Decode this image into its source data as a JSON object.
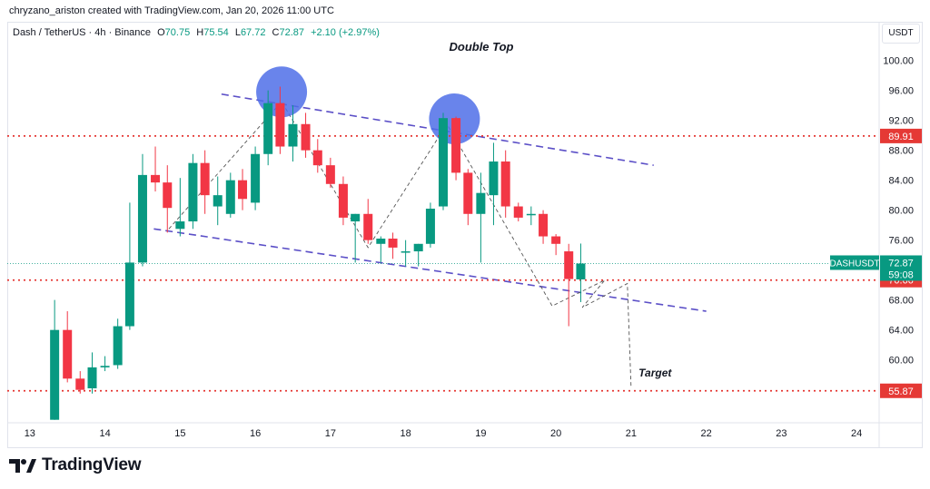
{
  "credit": "chryzano_ariston created with TradingView.com, Jan 20, 2026 11:00 UTC",
  "header": {
    "symbol": "Dash / TetherUS · 4h · Binance",
    "open_label": "O",
    "open": "70.75",
    "high_label": "H",
    "high": "75.54",
    "low_label": "L",
    "low": "67.72",
    "close_label": "C",
    "close": "72.87",
    "change": "+2.10 (+2.97%)"
  },
  "currency": "USDT",
  "brand": "TradingView",
  "colors": {
    "up": "#089981",
    "down": "#f23645",
    "level": "#e53935",
    "channel": "#5b4fc7",
    "circle": "#4f6fe8"
  },
  "chart_data": {
    "type": "candlestick",
    "title": "Double Top",
    "ylim": [
      51.6,
      102.5
    ],
    "xlim": [
      12.7,
      24.3
    ],
    "y_ticks": [
      "100.00",
      "96.00",
      "92.00",
      "88.00",
      "84.00",
      "80.00",
      "76.00",
      "72.00",
      "68.00",
      "64.00",
      "60.00",
      "56.00"
    ],
    "y_tick_values": [
      100,
      96,
      92,
      88,
      84,
      80,
      76,
      72,
      68,
      64,
      60,
      56
    ],
    "x_ticks": [
      "13",
      "14",
      "15",
      "16",
      "17",
      "18",
      "19",
      "20",
      "21",
      "22",
      "23",
      "24"
    ],
    "x_tick_values": [
      13,
      14,
      15,
      16,
      17,
      18,
      19,
      20,
      21,
      22,
      23,
      24
    ],
    "candles": [
      {
        "t": 13.33,
        "o": 52,
        "h": 68,
        "l": 52,
        "c": 64
      },
      {
        "t": 13.5,
        "o": 64,
        "h": 66.5,
        "l": 57,
        "c": 57.5
      },
      {
        "t": 13.67,
        "o": 57.5,
        "h": 58.5,
        "l": 55.5,
        "c": 56
      },
      {
        "t": 13.83,
        "o": 56.2,
        "h": 61,
        "l": 55.5,
        "c": 59
      },
      {
        "t": 14.0,
        "o": 59,
        "h": 60.5,
        "l": 58.5,
        "c": 59.2
      },
      {
        "t": 14.17,
        "o": 59.3,
        "h": 65.5,
        "l": 58.8,
        "c": 64.5
      },
      {
        "t": 14.33,
        "o": 64.5,
        "h": 81,
        "l": 64,
        "c": 73
      },
      {
        "t": 14.5,
        "o": 73,
        "h": 87.5,
        "l": 72.5,
        "c": 84.7
      },
      {
        "t": 14.67,
        "o": 84.7,
        "h": 88.5,
        "l": 82.5,
        "c": 83.7
      },
      {
        "t": 14.83,
        "o": 83.7,
        "h": 86,
        "l": 77,
        "c": 80.3
      },
      {
        "t": 15.0,
        "o": 77.5,
        "h": 84.3,
        "l": 76.5,
        "c": 78.5
      },
      {
        "t": 15.17,
        "o": 78.5,
        "h": 87.5,
        "l": 77.5,
        "c": 86.3
      },
      {
        "t": 15.33,
        "o": 86.3,
        "h": 88,
        "l": 79.5,
        "c": 82
      },
      {
        "t": 15.5,
        "o": 80.5,
        "h": 84.5,
        "l": 78,
        "c": 82
      },
      {
        "t": 15.67,
        "o": 79.5,
        "h": 85,
        "l": 79,
        "c": 84
      },
      {
        "t": 15.83,
        "o": 84,
        "h": 85.5,
        "l": 80,
        "c": 81.5
      },
      {
        "t": 16.0,
        "o": 81,
        "h": 88.5,
        "l": 80,
        "c": 87.5
      },
      {
        "t": 16.17,
        "o": 87.5,
        "h": 96,
        "l": 86,
        "c": 94.3
      },
      {
        "t": 16.33,
        "o": 94.3,
        "h": 96.5,
        "l": 87.5,
        "c": 88.5
      },
      {
        "t": 16.5,
        "o": 88.5,
        "h": 94,
        "l": 86.5,
        "c": 91.5
      },
      {
        "t": 16.67,
        "o": 91.5,
        "h": 93,
        "l": 87,
        "c": 88
      },
      {
        "t": 16.83,
        "o": 88,
        "h": 89.5,
        "l": 85,
        "c": 86
      },
      {
        "t": 17.0,
        "o": 86,
        "h": 87,
        "l": 83,
        "c": 83.5
      },
      {
        "t": 17.17,
        "o": 83.5,
        "h": 84.5,
        "l": 78,
        "c": 79
      },
      {
        "t": 17.33,
        "o": 78.5,
        "h": 79.5,
        "l": 73,
        "c": 79.5
      },
      {
        "t": 17.5,
        "o": 79.5,
        "h": 81.5,
        "l": 75.5,
        "c": 76
      },
      {
        "t": 17.67,
        "o": 75.5,
        "h": 76.5,
        "l": 73,
        "c": 76.2
      },
      {
        "t": 17.83,
        "o": 76.2,
        "h": 77,
        "l": 73.5,
        "c": 75
      },
      {
        "t": 18.0,
        "o": 74.5,
        "h": 76,
        "l": 72.5,
        "c": 74.5
      },
      {
        "t": 18.17,
        "o": 74.5,
        "h": 75.5,
        "l": 72.5,
        "c": 75.5
      },
      {
        "t": 18.33,
        "o": 75.5,
        "h": 81,
        "l": 75,
        "c": 80.2
      },
      {
        "t": 18.5,
        "o": 80.5,
        "h": 93,
        "l": 80,
        "c": 92.3
      },
      {
        "t": 18.67,
        "o": 92.3,
        "h": 92.5,
        "l": 84,
        "c": 85
      },
      {
        "t": 18.83,
        "o": 85,
        "h": 85.5,
        "l": 78,
        "c": 79.5
      },
      {
        "t": 19.0,
        "o": 79.5,
        "h": 85,
        "l": 73,
        "c": 82.3
      },
      {
        "t": 19.17,
        "o": 82,
        "h": 89,
        "l": 78,
        "c": 86.5
      },
      {
        "t": 19.33,
        "o": 86.5,
        "h": 88,
        "l": 79,
        "c": 80.5
      },
      {
        "t": 19.5,
        "o": 80.5,
        "h": 81,
        "l": 78.5,
        "c": 79
      },
      {
        "t": 19.67,
        "o": 79.5,
        "h": 80.5,
        "l": 78,
        "c": 79.5
      },
      {
        "t": 19.83,
        "o": 79.5,
        "h": 80,
        "l": 75.5,
        "c": 76.5
      },
      {
        "t": 20.0,
        "o": 76.5,
        "h": 76.8,
        "l": 74,
        "c": 75.5
      },
      {
        "t": 20.17,
        "o": 74.5,
        "h": 75.5,
        "l": 64.5,
        "c": 70.8
      },
      {
        "t": 20.33,
        "o": 70.75,
        "h": 75.54,
        "l": 67.72,
        "c": 72.87
      }
    ],
    "horizontal_levels": [
      {
        "value": 89.91,
        "label": "89.91"
      },
      {
        "value": 70.66,
        "label": "70.66"
      },
      {
        "value": 55.87,
        "label": "55.87"
      }
    ],
    "last_price": {
      "symbol": "DASHUSDT",
      "value": 72.87,
      "label": "72.87",
      "countdown": "59:08"
    },
    "annotations": {
      "target_label": "Target"
    }
  }
}
